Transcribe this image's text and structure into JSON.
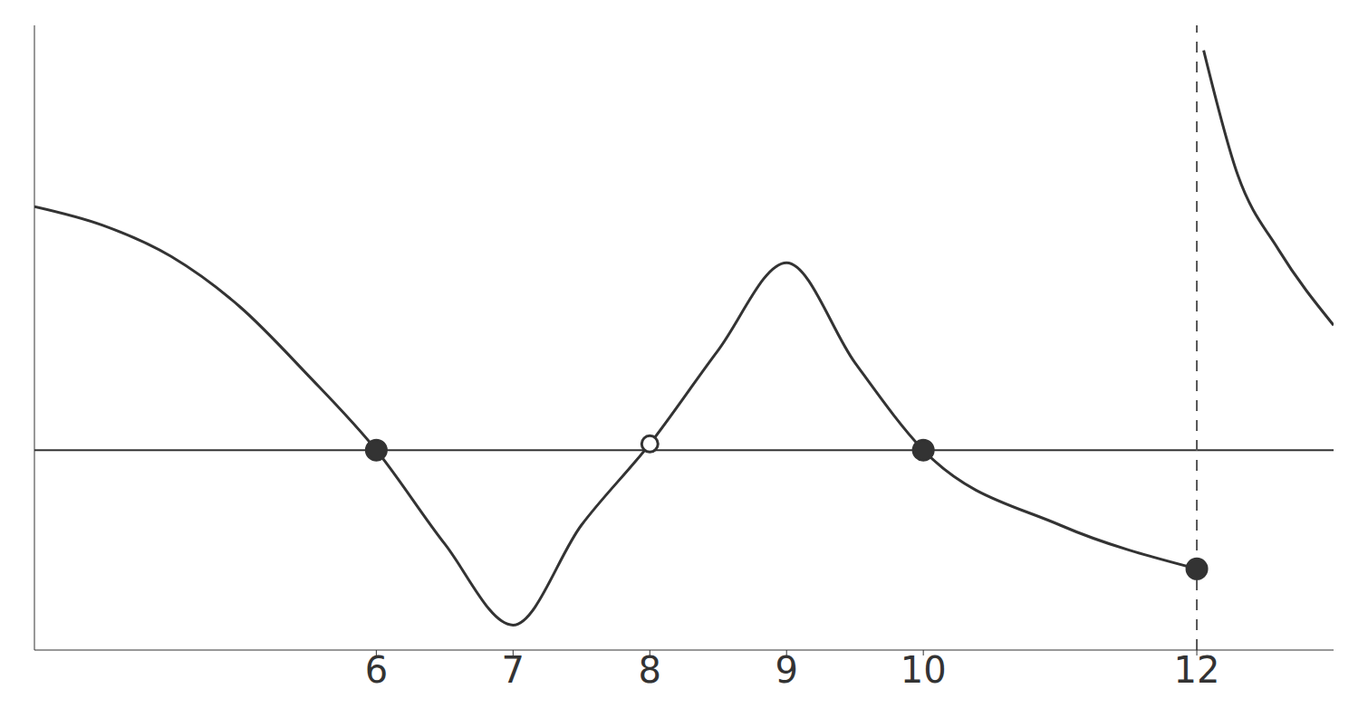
{
  "chart_data": {
    "type": "line",
    "xlim": [
      3.5,
      13
    ],
    "xticks": [
      6,
      7,
      8,
      9,
      10,
      12
    ],
    "ylim": [
      -1.6,
      3.4
    ],
    "yticks": [],
    "tick_labels": "x",
    "grid": false,
    "series": [
      {
        "type": "line",
        "color": "#333333",
        "line_style": "solid",
        "x": [
          3.5,
          4,
          4.5,
          5,
          5.5,
          6,
          6.5,
          7,
          7.5,
          8,
          8.5,
          9,
          9.5,
          10,
          11,
          12
        ],
        "values": [
          1.95,
          1.8,
          1.55,
          1.15,
          0.6,
          0,
          -0.75,
          -1.4,
          -0.6,
          0.05,
          0.8,
          1.5,
          0.7,
          0,
          -0.6,
          -0.95
        ]
      },
      {
        "type": "line",
        "color": "#333333",
        "line_style": "solid",
        "x": [
          12.05,
          12.3,
          12.6,
          13
        ],
        "values": [
          3.2,
          2.2,
          1.6,
          1.0
        ]
      },
      {
        "type": "line",
        "color": "#555555",
        "line_style": "dashed",
        "x": [
          12,
          12
        ],
        "values": [
          -1.6,
          3.4
        ]
      },
      {
        "type": "scatter",
        "color": "#333333",
        "marker": "filled",
        "x": [
          6,
          10,
          12
        ],
        "values": [
          0,
          0,
          -0.95
        ]
      },
      {
        "type": "scatter",
        "color": "#333333",
        "marker": "open",
        "x": [
          8
        ],
        "values": [
          0.05
        ]
      }
    ]
  }
}
